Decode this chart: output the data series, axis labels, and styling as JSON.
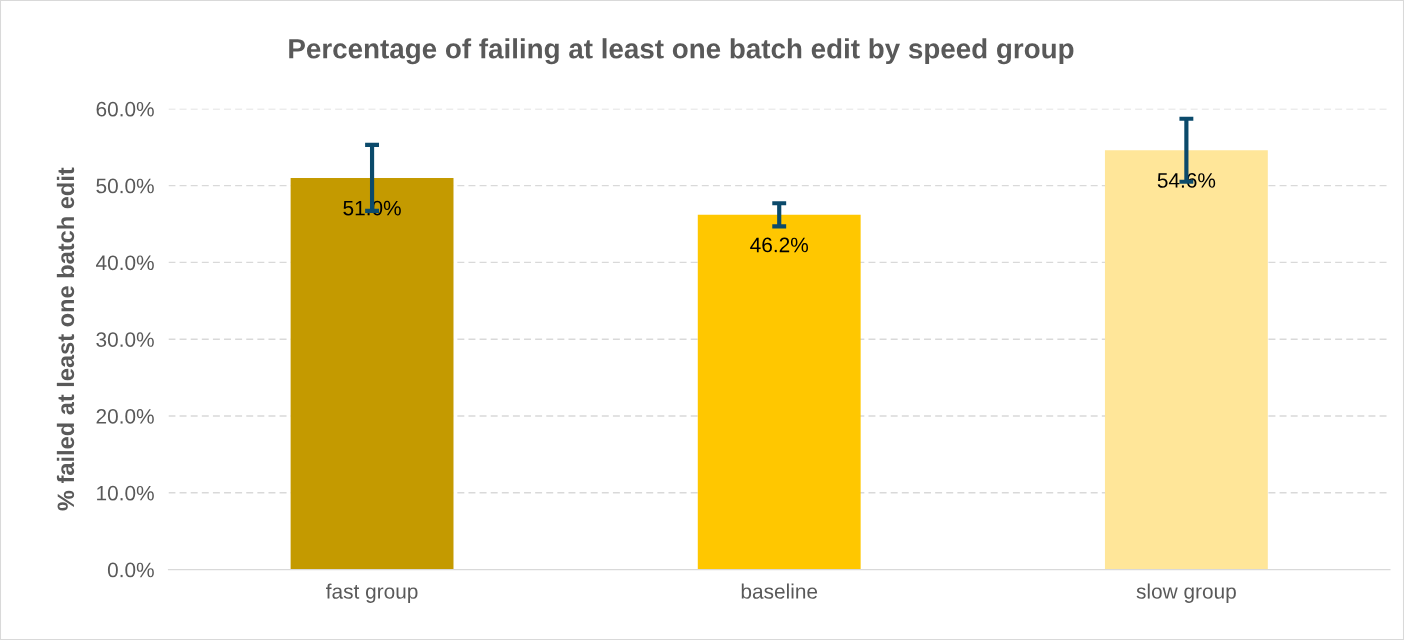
{
  "chart_data": {
    "type": "bar",
    "title": "Percentage of failing at least one batch edit by speed group",
    "ylabel": "% failed at least one batch edit",
    "categories": [
      "fast group",
      "baseline",
      "slow group"
    ],
    "values": [
      51.0,
      46.2,
      54.6
    ],
    "colors": [
      "#c49a00",
      "#ffc700",
      "#ffe699"
    ],
    "errors": [
      4.3,
      1.5,
      4.1
    ],
    "value_labels": [
      "51.0%",
      "46.2%",
      "54.6%"
    ],
    "ylim": [
      0,
      60
    ],
    "yticks": [
      {
        "value": 0,
        "label": "0.0%"
      },
      {
        "value": 10,
        "label": "10.0%"
      },
      {
        "value": 20,
        "label": "20.0%"
      },
      {
        "value": 30,
        "label": "30.0%"
      },
      {
        "value": 40,
        "label": "40.0%"
      },
      {
        "value": 50,
        "label": "50.0%"
      },
      {
        "value": 60,
        "label": "60.0%"
      }
    ],
    "grid": "y"
  }
}
